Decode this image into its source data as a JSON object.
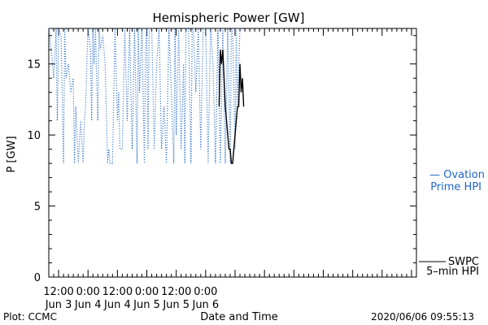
{
  "chart_data": {
    "type": "line",
    "title": "Hemispheric Power [GW]",
    "xlabel": "Date and Time",
    "ylabel": "P [GW]",
    "ylim": [
      0,
      17.5
    ],
    "xlim_hours_since_jun3_00": [
      8,
      158
    ],
    "y_ticks": [
      0,
      5,
      10,
      15
    ],
    "x_ticks": [
      {
        "t": 12,
        "time": "12:00",
        "date": "Jun 3"
      },
      {
        "t": 24,
        "time": "0:00",
        "date": "Jun 4"
      },
      {
        "t": 36,
        "time": "12:00",
        "date": "Jun 4"
      },
      {
        "t": 48,
        "time": "0:00",
        "date": "Jun 5"
      },
      {
        "t": 60,
        "time": "12:00",
        "date": "Jun 5"
      },
      {
        "t": 72,
        "time": "0:00",
        "date": "Jun 6"
      }
    ],
    "series": [
      {
        "name": "Ovation Prime HPI",
        "style": "dotted",
        "color": "#1f66c8",
        "points": [
          [
            8,
            17.5
          ],
          [
            9,
            16
          ],
          [
            10,
            14
          ],
          [
            11,
            17.5
          ],
          [
            11.5,
            11
          ],
          [
            12,
            17.5
          ],
          [
            13,
            17
          ],
          [
            14,
            8
          ],
          [
            14.5,
            17.5
          ],
          [
            15,
            14
          ],
          [
            16,
            15
          ],
          [
            17,
            13
          ],
          [
            18,
            14
          ],
          [
            18.5,
            8
          ],
          [
            19,
            12
          ],
          [
            20,
            8
          ],
          [
            21,
            11
          ],
          [
            22,
            8
          ],
          [
            22.5,
            11
          ],
          [
            23,
            12
          ],
          [
            24,
            17.5
          ],
          [
            25,
            16
          ],
          [
            25.5,
            11
          ],
          [
            26,
            17.5
          ],
          [
            26.5,
            15
          ],
          [
            27,
            17.5
          ],
          [
            28,
            11
          ],
          [
            28.5,
            17.5
          ],
          [
            29,
            16
          ],
          [
            30,
            17
          ],
          [
            31,
            15
          ],
          [
            32,
            8
          ],
          [
            32.5,
            9
          ],
          [
            33,
            8
          ],
          [
            34,
            8
          ],
          [
            35,
            17.5
          ],
          [
            36,
            11
          ],
          [
            36.5,
            13
          ],
          [
            37,
            9
          ],
          [
            38,
            9
          ],
          [
            39,
            17.5
          ],
          [
            40,
            11
          ],
          [
            41,
            17.5
          ],
          [
            42,
            9
          ],
          [
            43,
            17.5
          ],
          [
            44,
            8
          ],
          [
            44.5,
            17.5
          ],
          [
            45,
            13
          ],
          [
            46,
            17.5
          ],
          [
            47,
            8
          ],
          [
            47.5,
            16
          ],
          [
            48,
            17.5
          ],
          [
            48.5,
            9
          ],
          [
            49,
            17.5
          ],
          [
            50,
            17.5
          ],
          [
            51,
            9
          ],
          [
            52,
            15
          ],
          [
            53,
            17.5
          ],
          [
            54,
            9
          ],
          [
            55,
            12
          ],
          [
            56,
            8
          ],
          [
            57,
            17.5
          ],
          [
            58,
            13
          ],
          [
            59,
            8
          ],
          [
            59.5,
            17.5
          ],
          [
            60,
            10
          ],
          [
            61,
            17.5
          ],
          [
            62,
            9
          ],
          [
            63,
            15
          ],
          [
            63.5,
            8
          ],
          [
            64,
            17.5
          ],
          [
            65,
            17.5
          ],
          [
            66,
            8
          ],
          [
            66.5,
            17.5
          ],
          [
            67,
            17.5
          ],
          [
            68,
            13
          ],
          [
            69,
            17.5
          ],
          [
            70,
            9
          ],
          [
            71,
            17.5
          ],
          [
            72,
            17.5
          ],
          [
            73,
            8
          ],
          [
            74,
            17.5
          ],
          [
            75,
            15
          ],
          [
            76,
            8
          ],
          [
            77,
            17.5
          ],
          [
            78,
            8
          ],
          [
            79,
            17.5
          ],
          [
            80,
            8
          ],
          [
            81,
            17.5
          ],
          [
            82,
            8
          ],
          [
            82.5,
            17.5
          ],
          [
            83,
            17.5
          ],
          [
            84,
            9
          ],
          [
            84.5,
            17.5
          ],
          [
            85,
            12
          ],
          [
            86,
            17.5
          ]
        ]
      },
      {
        "name": "SWPC 5-min HPI",
        "style": "solid",
        "color": "#000000",
        "points": [
          [
            77.5,
            12
          ],
          [
            78,
            16
          ],
          [
            78.5,
            15
          ],
          [
            79,
            16
          ],
          [
            79.5,
            14
          ],
          [
            80,
            12
          ],
          [
            80.5,
            11
          ],
          [
            81,
            10
          ],
          [
            81.5,
            9
          ],
          [
            82,
            9
          ],
          [
            82.5,
            8
          ],
          [
            83,
            8
          ],
          [
            83.5,
            9
          ],
          [
            84,
            10
          ],
          [
            84.5,
            11
          ],
          [
            85,
            12
          ],
          [
            85.5,
            12
          ],
          [
            86,
            15
          ],
          [
            86.5,
            13
          ],
          [
            87,
            14
          ],
          [
            87.5,
            12
          ]
        ]
      }
    ],
    "legend": [
      {
        "label": "— Ovation",
        "label2": "Prime HPI",
        "color": "#1f66c8"
      },
      {
        "label": "SWPC",
        "label2": "5–min HPI",
        "color": "#000000"
      }
    ],
    "footer_left": "Plot: CCMC",
    "footer_right": "2020/06/06 09:55:13"
  }
}
